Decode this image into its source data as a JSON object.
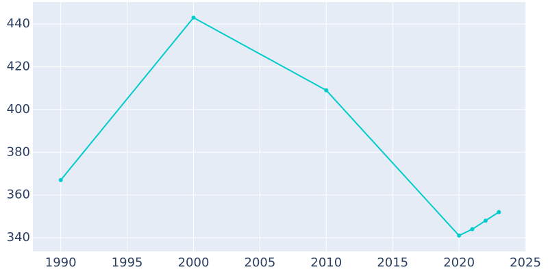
{
  "chart_data": {
    "type": "line",
    "x": [
      1990,
      2000,
      2010,
      2020,
      2021,
      2022,
      2023
    ],
    "series": [
      {
        "color": "#00cccc",
        "values": [
          367,
          443,
          409,
          341,
          344,
          348,
          352
        ]
      }
    ],
    "xlim": [
      1987.9,
      2025.05
    ],
    "xticks": [
      1990,
      1995,
      2000,
      2005,
      2010,
      2015,
      2020,
      2025
    ],
    "ylim": [
      333.6,
      450.3
    ],
    "yticks": [
      340,
      360,
      380,
      400,
      420,
      440
    ],
    "grid": true
  }
}
